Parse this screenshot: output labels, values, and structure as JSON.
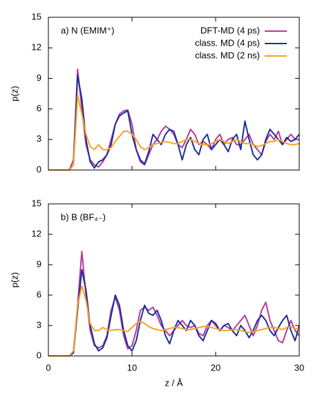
{
  "chart_data": [
    {
      "type": "line",
      "annotation": "a) N (EMIM⁺)",
      "ylabel": "p(z)",
      "legend": "top-right",
      "show_xtick_labels": false,
      "x": [
        0,
        0.5,
        1,
        1.5,
        2,
        2.5,
        3,
        3.5,
        4,
        4.5,
        5,
        5.5,
        6,
        6.5,
        7,
        7.5,
        8,
        8.5,
        9,
        9.5,
        10,
        10.5,
        11,
        11.5,
        12,
        12.5,
        13,
        13.5,
        14,
        14.5,
        15,
        15.5,
        16,
        16.5,
        17,
        17.5,
        18,
        18.5,
        19,
        19.5,
        20,
        20.5,
        21,
        21.5,
        22,
        22.5,
        23,
        23.5,
        24,
        24.5,
        25,
        25.5,
        26,
        26.5,
        27,
        27.5,
        28,
        28.5,
        29,
        29.5,
        30
      ],
      "xlim": [
        0,
        30
      ],
      "xticks": [
        0,
        10,
        20,
        30
      ],
      "ylim": [
        0,
        15
      ],
      "yticks": [
        0,
        3,
        6,
        9,
        12,
        15
      ],
      "series": [
        {
          "name": "DFT-MD (4 ps)",
          "color": "#b5399a",
          "values": [
            0,
            0,
            0,
            0,
            0,
            0,
            1,
            9.9,
            6,
            2.5,
            1,
            0.5,
            0.3,
            0.8,
            1.5,
            3,
            4.5,
            5.5,
            5.8,
            5.9,
            4.5,
            2,
            0.8,
            0.5,
            1.5,
            2.5,
            3,
            3.8,
            4.3,
            4,
            3.5,
            2.5,
            2.2,
            3,
            4,
            3.5,
            2.5,
            2.8,
            2.5,
            2,
            3,
            3.5,
            2.5,
            3,
            3.2,
            2.5,
            2.5,
            3,
            3.5,
            2.5,
            2,
            1.5,
            2.8,
            3.5,
            3,
            3.8,
            2.5,
            3,
            3.5,
            3,
            3
          ]
        },
        {
          "name": "class. MD (4 ps)",
          "color": "#1a2e9c",
          "values": [
            0,
            0,
            0,
            0,
            0,
            0,
            0.5,
            9.3,
            7,
            3,
            0.8,
            0.2,
            0.8,
            1,
            1.5,
            2.5,
            4.5,
            5.3,
            5.6,
            5.8,
            3.5,
            2,
            1,
            0.6,
            1.8,
            3.5,
            3,
            2.5,
            3.5,
            4,
            3.8,
            2.5,
            1,
            2.5,
            3.2,
            2,
            1.5,
            3,
            3.5,
            2,
            2.5,
            3,
            2.5,
            1.8,
            3,
            3.5,
            2,
            4.8,
            3,
            1.5,
            1,
            1.5,
            3,
            4,
            3.5,
            3,
            2.5,
            3.2,
            2.8,
            3,
            3.5
          ]
        },
        {
          "name": "class. MD (2 ns)",
          "color": "#f5a31e",
          "values": [
            0,
            0,
            0,
            0,
            0,
            0,
            0.5,
            7.3,
            5.5,
            3.5,
            2.3,
            2,
            2.5,
            2,
            2,
            2.2,
            2.8,
            3.3,
            3.8,
            3.8,
            3.5,
            3,
            2.3,
            2,
            2.2,
            2.5,
            2.6,
            2.7,
            2.8,
            2.7,
            2.6,
            2.6,
            2.8,
            3,
            3,
            2.8,
            2.6,
            2.5,
            2.5,
            2.6,
            2.8,
            3,
            2.8,
            2.6,
            2.8,
            3,
            2.8,
            2.6,
            2.6,
            2.5,
            2.3,
            2.4,
            2.6,
            2.8,
            2.8,
            3,
            2.8,
            2.6,
            2.5,
            2.5,
            2.6
          ]
        }
      ]
    },
    {
      "type": "line",
      "annotation": "b) B (BF₄₋)",
      "ylabel": "p(z)",
      "xlabel": "z / Å",
      "x": [
        0,
        0.5,
        1,
        1.5,
        2,
        2.5,
        3,
        3.5,
        4,
        4.5,
        5,
        5.5,
        6,
        6.5,
        7,
        7.5,
        8,
        8.5,
        9,
        9.5,
        10,
        10.5,
        11,
        11.5,
        12,
        12.5,
        13,
        13.5,
        14,
        14.5,
        15,
        15.5,
        16,
        16.5,
        17,
        17.5,
        18,
        18.5,
        19,
        19.5,
        20,
        20.5,
        21,
        21.5,
        22,
        22.5,
        23,
        23.5,
        24,
        24.5,
        25,
        25.5,
        26,
        26.5,
        27,
        27.5,
        28,
        28.5,
        29,
        29.5,
        30
      ],
      "xlim": [
        0,
        30
      ],
      "xticks": [
        0,
        10,
        20,
        30
      ],
      "ylim": [
        0,
        15
      ],
      "yticks": [
        0,
        3,
        6,
        9,
        12,
        15
      ],
      "series": [
        {
          "color": "#b5399a",
          "values": [
            0,
            0,
            0,
            0,
            0,
            0,
            0.5,
            5,
            10.3,
            6,
            2.5,
            1,
            0.8,
            1,
            2,
            4.5,
            5.8,
            4.5,
            2,
            0.7,
            1,
            2.5,
            4.5,
            4.8,
            4.5,
            4.8,
            4,
            3,
            2.5,
            2,
            2.5,
            3,
            3.5,
            3,
            2.8,
            3,
            2.2,
            2,
            3,
            3.5,
            3,
            2.5,
            3,
            2.8,
            2.5,
            3,
            3.5,
            4,
            3,
            2,
            3,
            4.5,
            5.3,
            3.5,
            2.5,
            1.5,
            1.3,
            2.5,
            3.5,
            2.5,
            2
          ]
        },
        {
          "color": "#1a2e9c",
          "values": [
            0,
            0,
            0,
            0,
            0,
            0,
            0.3,
            4.5,
            8.5,
            6.5,
            3,
            1.2,
            0.5,
            0.8,
            1.8,
            4,
            6,
            5,
            2.5,
            1,
            0.5,
            1.5,
            3.5,
            5,
            4.2,
            4,
            4.5,
            3.5,
            2,
            1.2,
            2.5,
            3.5,
            3,
            2.5,
            3.5,
            3,
            2,
            1.5,
            2.5,
            3.5,
            3.2,
            2.5,
            3,
            3.2,
            2.5,
            2,
            3,
            2.5,
            1.8,
            2.5,
            3.5,
            4,
            3.5,
            2.5,
            2,
            2.8,
            3.5,
            4,
            2.5,
            1.5,
            3
          ]
        },
        {
          "color": "#f5a31e",
          "values": [
            0,
            0,
            0,
            0,
            0,
            0,
            0.5,
            5,
            6.9,
            5.5,
            3.2,
            2.5,
            2.5,
            2.8,
            2.6,
            2.5,
            2.6,
            2.6,
            2.5,
            2.4,
            2.8,
            3.2,
            3.4,
            3.2,
            2.9,
            2.7,
            2.6,
            2.5,
            2.6,
            2.7,
            2.8,
            2.8,
            2.7,
            2.6,
            2.6,
            2.7,
            2.8,
            2.9,
            2.9,
            2.8,
            2.7,
            2.6,
            2.5,
            2.5,
            2.6,
            2.6,
            2.5,
            2.4,
            2.3,
            2.4,
            2.5,
            2.6,
            2.7,
            2.8,
            2.8,
            2.7,
            2.6,
            2.8,
            2.9,
            2.7,
            2.6
          ]
        }
      ]
    }
  ]
}
